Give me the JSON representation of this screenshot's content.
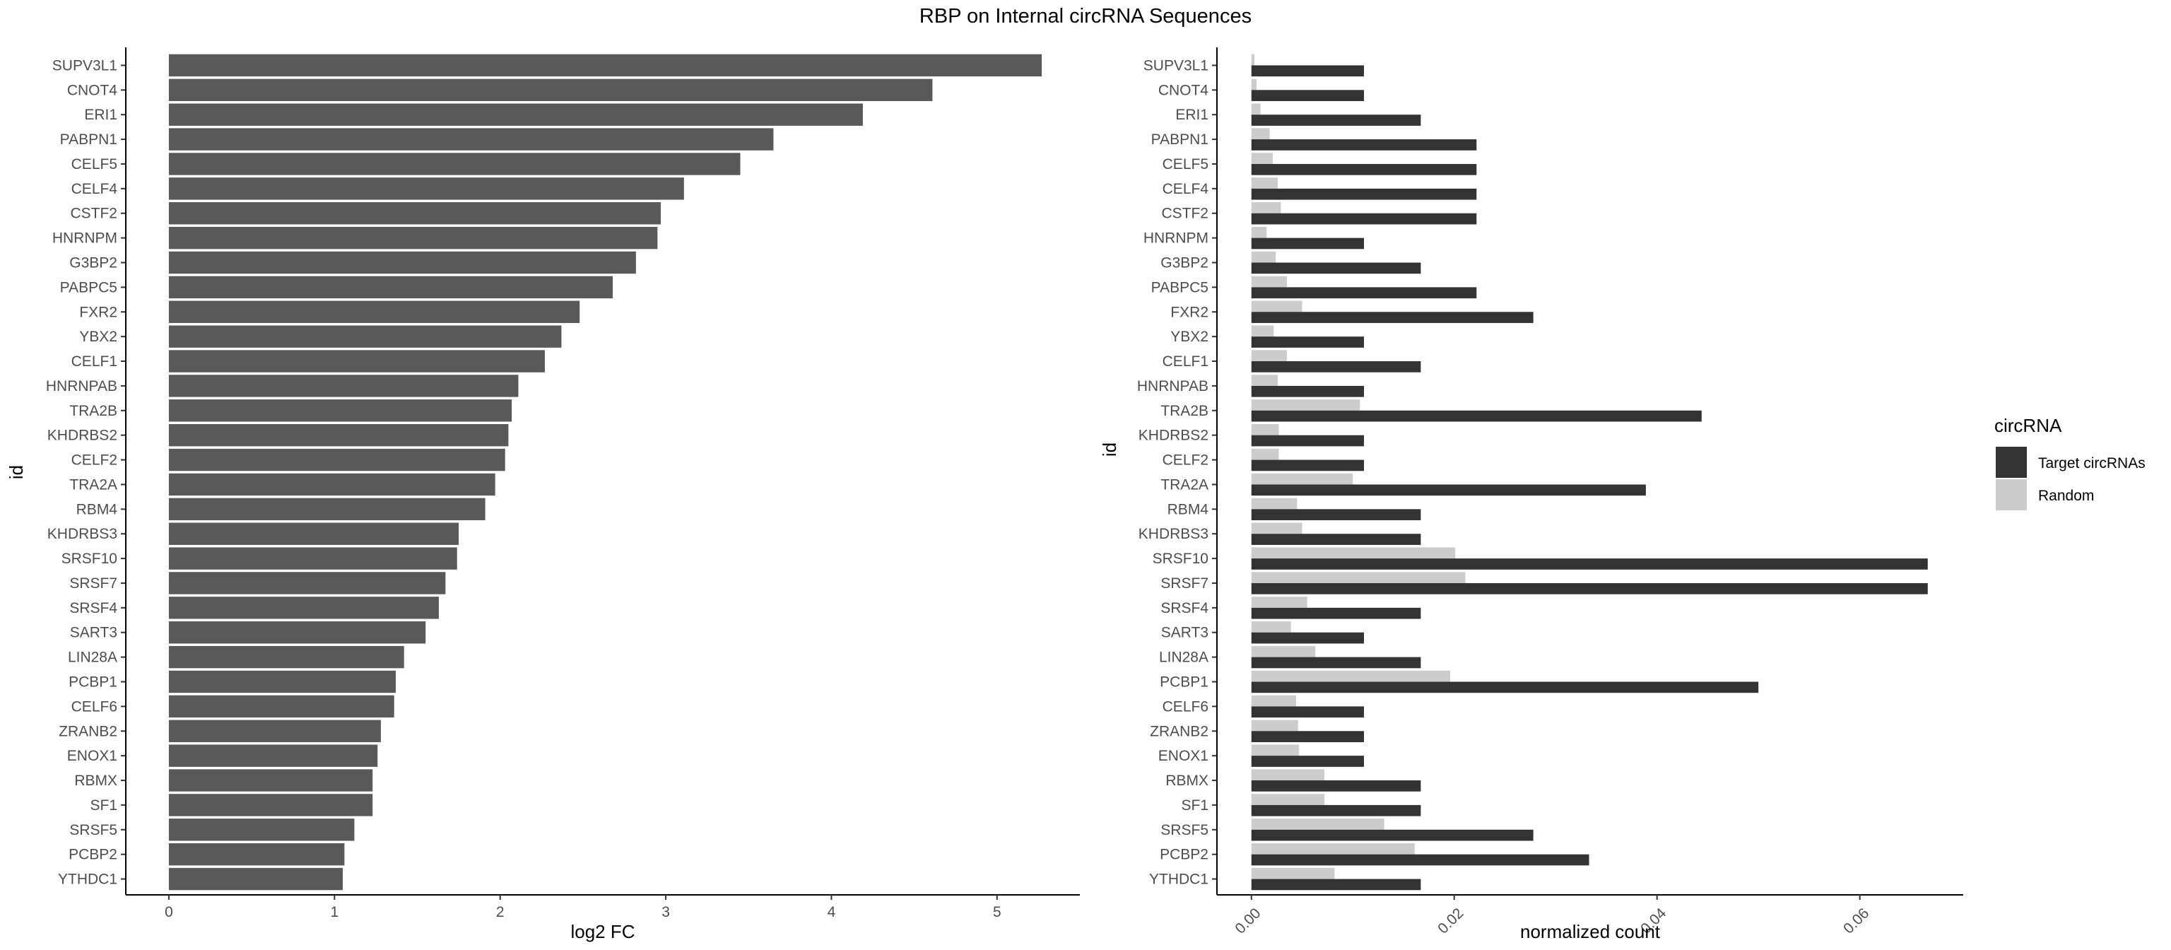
{
  "title": "RBP on Internal circRNA Sequences",
  "chart_data": [
    {
      "type": "bar",
      "orientation": "horizontal",
      "categories": [
        "SUPV3L1",
        "CNOT4",
        "ERI1",
        "PABPN1",
        "CELF5",
        "CELF4",
        "CSTF2",
        "HNRNPM",
        "G3BP2",
        "PABPC5",
        "FXR2",
        "YBX2",
        "CELF1",
        "HNRNPAB",
        "TRA2B",
        "KHDRBS2",
        "CELF2",
        "TRA2A",
        "RBM4",
        "KHDRBS3",
        "SRSF10",
        "SRSF7",
        "SRSF4",
        "SART3",
        "LIN28A",
        "PCBP1",
        "CELF6",
        "ZRANB2",
        "ENOX1",
        "RBMX",
        "SF1",
        "SRSF5",
        "PCBP2",
        "YTHDC1"
      ],
      "values": [
        5.27,
        4.61,
        4.19,
        3.65,
        3.45,
        3.11,
        2.97,
        2.95,
        2.82,
        2.68,
        2.48,
        2.37,
        2.27,
        2.11,
        2.07,
        2.05,
        2.03,
        1.97,
        1.91,
        1.75,
        1.74,
        1.67,
        1.63,
        1.55,
        1.42,
        1.37,
        1.36,
        1.28,
        1.26,
        1.23,
        1.23,
        1.12,
        1.06,
        1.05
      ],
      "xlabel": "log2 FC",
      "ylabel": "id",
      "xlim": [
        -0.26,
        5.5
      ],
      "xticks": [
        "0",
        "1",
        "2",
        "3",
        "4",
        "5"
      ],
      "bar_color": "#595959",
      "grid": false
    },
    {
      "type": "bar",
      "orientation": "horizontal",
      "grouped": true,
      "categories": [
        "SUPV3L1",
        "CNOT4",
        "ERI1",
        "PABPN1",
        "CELF5",
        "CELF4",
        "CSTF2",
        "HNRNPM",
        "G3BP2",
        "PABPC5",
        "FXR2",
        "YBX2",
        "CELF1",
        "HNRNPAB",
        "TRA2B",
        "KHDRBS2",
        "CELF2",
        "TRA2A",
        "RBM4",
        "KHDRBS3",
        "SRSF10",
        "SRSF7",
        "SRSF4",
        "SART3",
        "LIN28A",
        "PCBP1",
        "CELF6",
        "ZRANB2",
        "ENOX1",
        "RBMX",
        "SF1",
        "SRSF5",
        "PCBP2",
        "YTHDC1"
      ],
      "series": [
        {
          "name": "Target circRNAs",
          "color": "#333333",
          "values": [
            0.0111,
            0.0111,
            0.0167,
            0.0222,
            0.0222,
            0.0222,
            0.0222,
            0.0111,
            0.0167,
            0.0222,
            0.0278,
            0.0111,
            0.0167,
            0.0111,
            0.0444,
            0.0111,
            0.0111,
            0.0389,
            0.0167,
            0.0167,
            0.0667,
            0.0667,
            0.0167,
            0.0111,
            0.0167,
            0.05,
            0.0111,
            0.0111,
            0.0111,
            0.0167,
            0.0167,
            0.0278,
            0.0333,
            0.0167
          ]
        },
        {
          "name": "Random",
          "color": "#cccccc",
          "values": [
            0.0003,
            0.0005,
            0.0009,
            0.0018,
            0.0021,
            0.0026,
            0.0029,
            0.0015,
            0.0024,
            0.0035,
            0.005,
            0.0022,
            0.0035,
            0.0026,
            0.0107,
            0.0027,
            0.0027,
            0.01,
            0.0045,
            0.005,
            0.0201,
            0.0211,
            0.0055,
            0.0039,
            0.0063,
            0.0196,
            0.0044,
            0.0046,
            0.0047,
            0.0072,
            0.0072,
            0.0131,
            0.0161,
            0.0082
          ]
        }
      ],
      "xlabel": "normalized count",
      "ylabel": "id",
      "xlim": [
        -0.0034,
        0.0702
      ],
      "xticks": [
        0,
        0.02,
        0.04,
        0.06
      ],
      "xtick_labels": [
        "0.00",
        "0.02",
        "0.04",
        "0.06"
      ],
      "legend": {
        "title": "circRNA",
        "position": "right",
        "items": [
          "Target circRNAs",
          "Random"
        ]
      },
      "grid": false
    }
  ]
}
